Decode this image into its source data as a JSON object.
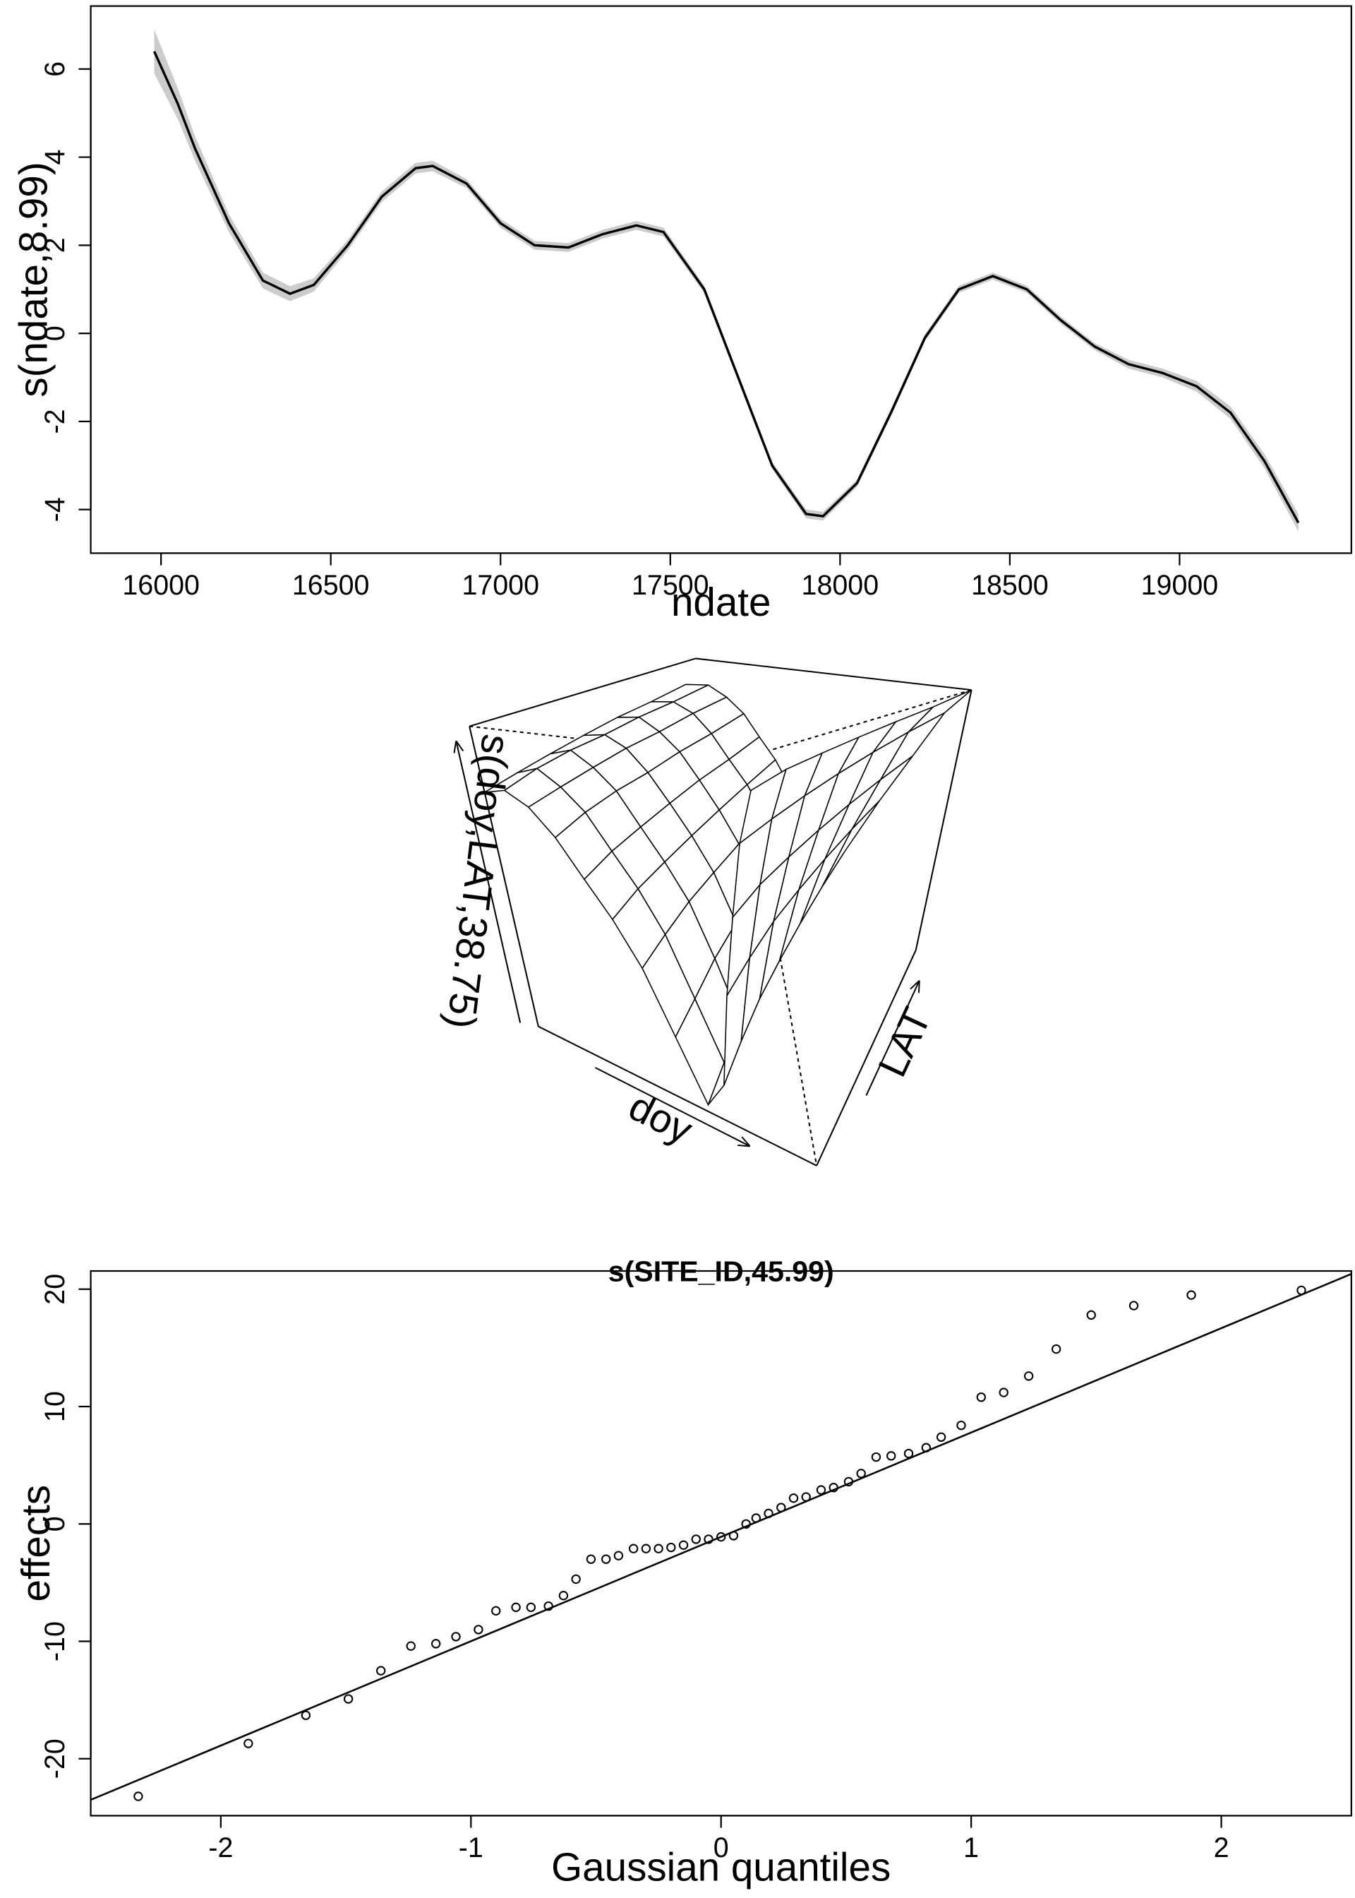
{
  "chart_data": [
    {
      "type": "line",
      "x_label": "ndate",
      "y_label": "s(ndate,8.99)",
      "color": "#000000",
      "band_color": "#cccccc",
      "x": [
        15980,
        16050,
        16100,
        16200,
        16300,
        16380,
        16450,
        16550,
        16650,
        16750,
        16800,
        16900,
        17000,
        17100,
        17200,
        17300,
        17400,
        17480,
        17600,
        17700,
        17800,
        17900,
        17950,
        18050,
        18150,
        18250,
        18350,
        18450,
        18550,
        18650,
        18750,
        18850,
        18950,
        19050,
        19150,
        19250,
        19350
      ],
      "values": [
        6.4,
        5.2,
        4.2,
        2.5,
        1.2,
        0.9,
        1.1,
        2.0,
        3.1,
        3.75,
        3.8,
        3.4,
        2.5,
        2.0,
        1.95,
        2.25,
        2.45,
        2.3,
        1.0,
        -1.0,
        -3.0,
        -4.1,
        -4.15,
        -3.4,
        -1.8,
        -0.1,
        1.0,
        1.3,
        1.0,
        0.3,
        -0.3,
        -0.7,
        -0.9,
        -1.2,
        -1.8,
        -2.9,
        -4.3
      ],
      "upper": [
        6.9,
        5.55,
        4.48,
        2.7,
        1.38,
        1.07,
        1.25,
        2.12,
        3.22,
        3.87,
        3.92,
        3.5,
        2.6,
        2.1,
        2.05,
        2.35,
        2.55,
        2.4,
        1.08,
        -0.92,
        -2.92,
        -4.0,
        -4.05,
        -3.32,
        -1.72,
        -0.02,
        1.08,
        1.38,
        1.08,
        0.38,
        -0.22,
        -0.6,
        -0.8,
        -1.08,
        -1.66,
        -2.74,
        -4.1
      ],
      "lower": [
        5.9,
        4.85,
        3.92,
        2.3,
        1.02,
        0.73,
        0.95,
        1.88,
        2.98,
        3.63,
        3.68,
        3.3,
        2.4,
        1.9,
        1.85,
        2.15,
        2.35,
        2.2,
        0.92,
        -1.08,
        -3.08,
        -4.2,
        -4.25,
        -3.48,
        -1.88,
        -0.18,
        0.92,
        1.22,
        0.92,
        0.22,
        -0.38,
        -0.8,
        -1.0,
        -1.32,
        -1.94,
        -3.06,
        -4.5
      ],
      "xlim": [
        15793,
        19506
      ],
      "ylim": [
        -4.99,
        7.43
      ],
      "xticks": [
        16000,
        16500,
        17000,
        17500,
        18000,
        18500,
        19000
      ],
      "yticks": [
        -4,
        -2,
        0,
        2,
        4,
        6
      ]
    },
    {
      "type": "surface",
      "x_label": "doy",
      "y_label": "LAT",
      "z_label": "s(doy,LAT,38.75)",
      "zlim": [
        0,
        1
      ],
      "z": [
        [
          0.78,
          0.8,
          0.76,
          0.68,
          0.57,
          0.47,
          0.35,
          0.18,
          0.02,
          0.1,
          0.36,
          0.58,
          0.78,
          0.92
        ],
        [
          0.79,
          0.82,
          0.77,
          0.7,
          0.59,
          0.49,
          0.37,
          0.2,
          0.04,
          0.13,
          0.39,
          0.61,
          0.8,
          0.94
        ],
        [
          0.8,
          0.83,
          0.78,
          0.71,
          0.6,
          0.5,
          0.39,
          0.23,
          0.06,
          0.16,
          0.42,
          0.63,
          0.82,
          0.95
        ],
        [
          0.81,
          0.83,
          0.79,
          0.71,
          0.61,
          0.51,
          0.4,
          0.25,
          0.08,
          0.18,
          0.44,
          0.65,
          0.84,
          0.96
        ],
        [
          0.82,
          0.84,
          0.79,
          0.72,
          0.62,
          0.52,
          0.41,
          0.27,
          0.1,
          0.2,
          0.46,
          0.67,
          0.86,
          0.97
        ],
        [
          0.82,
          0.84,
          0.8,
          0.72,
          0.62,
          0.53,
          0.42,
          0.28,
          0.12,
          0.22,
          0.48,
          0.69,
          0.88,
          0.98
        ],
        [
          0.83,
          0.85,
          0.8,
          0.73,
          0.63,
          0.54,
          0.43,
          0.3,
          0.14,
          0.24,
          0.5,
          0.71,
          0.9,
          1.0
        ]
      ]
    },
    {
      "type": "scatter",
      "title": "s(SITE_ID,45.99)",
      "x_label": "Gaussian quantiles",
      "y_label": "effects",
      "color": "#000000",
      "x": [
        -2.33,
        -1.89,
        -1.66,
        -1.49,
        -1.36,
        -1.24,
        -1.14,
        -1.06,
        -0.97,
        -0.9,
        -0.82,
        -0.76,
        -0.69,
        -0.63,
        -0.58,
        -0.52,
        -0.46,
        -0.41,
        -0.35,
        -0.3,
        -0.25,
        -0.2,
        -0.15,
        -0.1,
        -0.05,
        0.0,
        0.05,
        0.1,
        0.14,
        0.19,
        0.24,
        0.29,
        0.34,
        0.4,
        0.45,
        0.51,
        0.56,
        0.62,
        0.68,
        0.75,
        0.82,
        0.88,
        0.96,
        1.04,
        1.13,
        1.23,
        1.34,
        1.48,
        1.65,
        1.88,
        2.32
      ],
      "values": [
        -23.2,
        -18.7,
        -16.3,
        -14.9,
        -12.5,
        -10.4,
        -10.2,
        -9.6,
        -9.0,
        -7.4,
        -7.1,
        -7.1,
        -7.0,
        -6.1,
        -4.7,
        -3.0,
        -3.0,
        -2.7,
        -2.1,
        -2.1,
        -2.1,
        -2.0,
        -1.8,
        -1.3,
        -1.3,
        -1.1,
        -1.0,
        0.0,
        0.5,
        0.9,
        1.4,
        2.2,
        2.3,
        2.9,
        3.1,
        3.6,
        4.3,
        5.7,
        5.8,
        6.0,
        6.5,
        7.4,
        8.4,
        10.8,
        11.2,
        12.6,
        14.9,
        17.8,
        18.6,
        19.5,
        19.9
      ],
      "reference_line": {
        "x": [
          -2.52,
          2.52
        ],
        "y": [
          -23.5,
          21.3
        ]
      },
      "xlim": [
        -2.52,
        2.52
      ],
      "ylim": [
        -24.85,
        21.55
      ],
      "xticks": [
        -2,
        -1,
        0,
        1,
        2
      ],
      "yticks": [
        -20,
        -10,
        0,
        10,
        20
      ]
    }
  ]
}
